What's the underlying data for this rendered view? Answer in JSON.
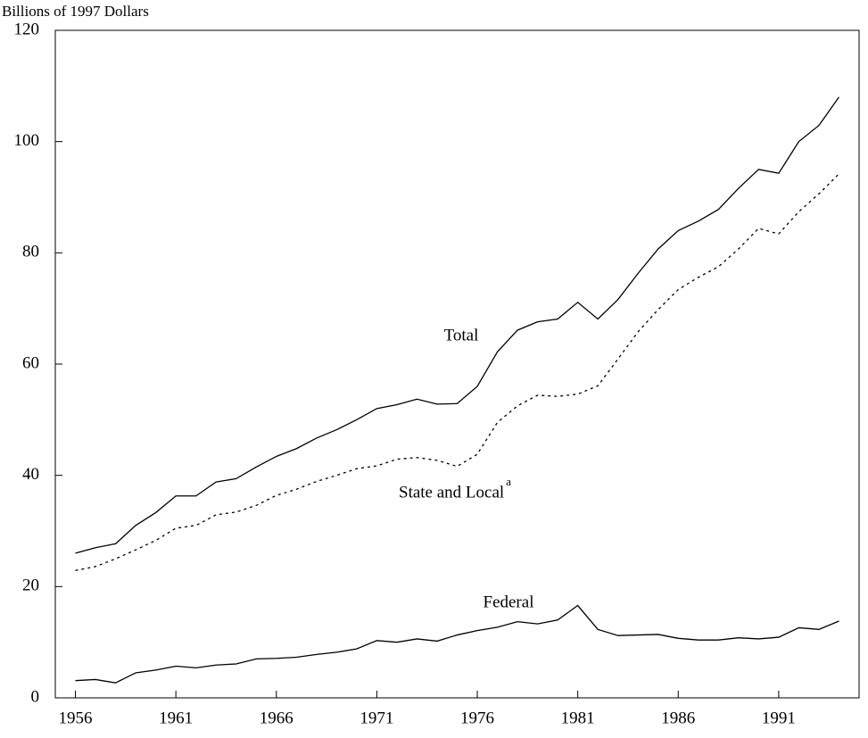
{
  "chart_data": {
    "type": "line",
    "y_axis_label": "Billions of 1997 Dollars",
    "footnote_marker": "a",
    "x": [
      1956,
      1957,
      1958,
      1959,
      1960,
      1961,
      1962,
      1963,
      1964,
      1965,
      1966,
      1967,
      1968,
      1969,
      1970,
      1971,
      1972,
      1973,
      1974,
      1975,
      1976,
      1977,
      1978,
      1979,
      1980,
      1981,
      1982,
      1983,
      1984,
      1985,
      1986,
      1987,
      1988,
      1989,
      1990,
      1991,
      1992,
      1993,
      1994
    ],
    "series": [
      {
        "name": "Total",
        "color": "#000000",
        "dash": "solid",
        "values": [
          26,
          27,
          27.7,
          31,
          33.3,
          36.3,
          36.3,
          38.8,
          39.4,
          41.5,
          43.4,
          44.8,
          46.7,
          48.2,
          50,
          52,
          52.7,
          53.7,
          52.8,
          52.9,
          56,
          62.2,
          66.1,
          67.6,
          68.1,
          71.1,
          68.1,
          71.6,
          76.3,
          80.7,
          84,
          85.7,
          87.8,
          91.6,
          95,
          94.3,
          100,
          102.9,
          108
        ]
      },
      {
        "name": "State and Local",
        "color": "#000000",
        "dash": "dotted",
        "values": [
          22.9,
          23.6,
          25,
          26.6,
          28.3,
          30.5,
          31,
          32.9,
          33.4,
          34.6,
          36.4,
          37.5,
          38.9,
          40,
          41.2,
          41.7,
          42.9,
          43.2,
          42.7,
          41.6,
          43.8,
          49.5,
          52.5,
          54.4,
          54.2,
          54.6,
          56.1,
          60.9,
          65.8,
          69.8,
          73.4,
          75.6,
          77.5,
          80.7,
          84.4,
          83.4,
          87.4,
          90.6,
          94.2
        ]
      },
      {
        "name": "Federal",
        "color": "#000000",
        "dash": "solid",
        "values": [
          3.1,
          3.3,
          2.7,
          4.5,
          5,
          5.7,
          5.4,
          5.9,
          6.1,
          7,
          7.1,
          7.3,
          7.8,
          8.2,
          8.8,
          10.3,
          10,
          10.6,
          10.2,
          11.3,
          12.1,
          12.7,
          13.7,
          13.3,
          14,
          16.6,
          12.3,
          11.2,
          11.3,
          11.4,
          10.7,
          10.4,
          10.4,
          10.8,
          10.6,
          10.9,
          12.6,
          12.3,
          13.8
        ]
      }
    ],
    "xlim": [
      1955,
      1995
    ],
    "xticks": [
      1956,
      1961,
      1966,
      1971,
      1976,
      1981,
      1986,
      1991
    ],
    "ylim": [
      0,
      120
    ],
    "yticks": [
      0,
      20,
      40,
      60,
      80,
      100,
      120
    ],
    "grid": false
  }
}
